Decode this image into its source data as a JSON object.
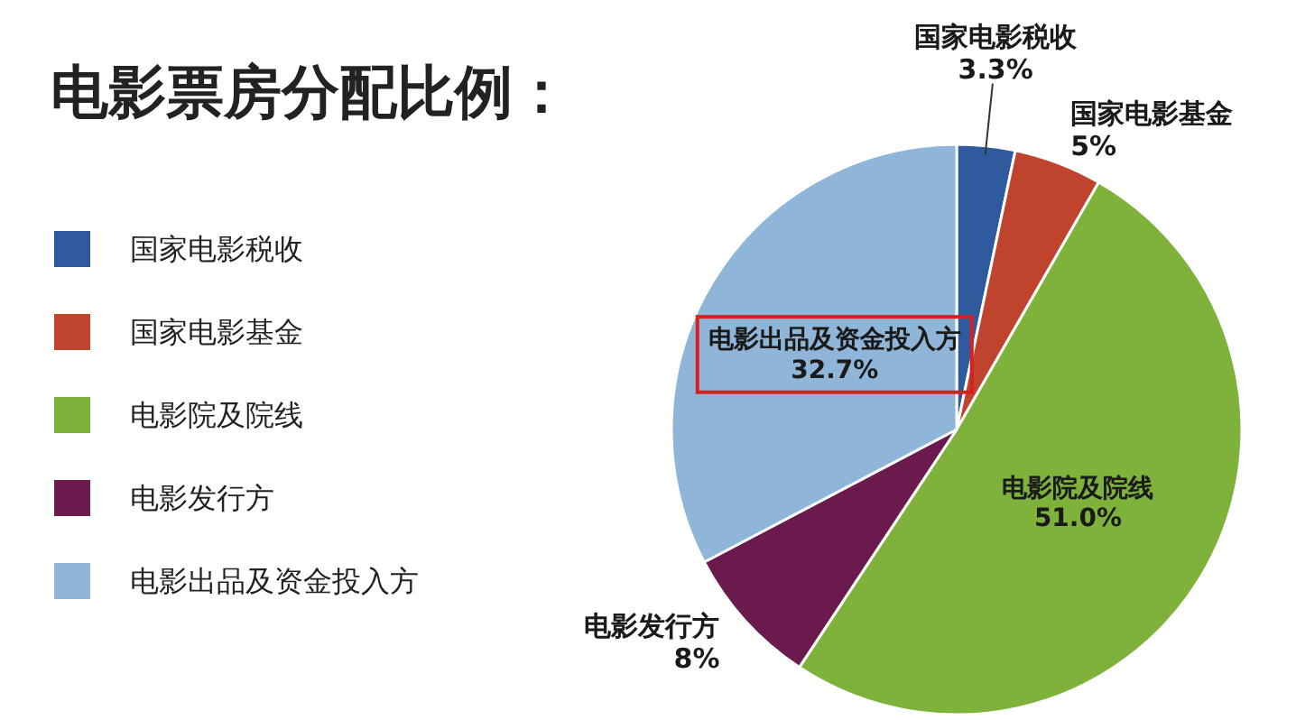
{
  "chart_data": {
    "type": "pie",
    "title": "电影票房分配比例：",
    "categories": [
      "国家电影税收",
      "国家电影基金",
      "电影院及院线",
      "电影发行方",
      "电影出品及资金投入方"
    ],
    "values": [
      3.3,
      5,
      51.0,
      8,
      32.7
    ],
    "value_labels": [
      "3.3%",
      "5%",
      "51.0%",
      "8%",
      "32.7%"
    ],
    "colors": [
      "#2f5a9e",
      "#c0432d",
      "#7fb23b",
      "#6a1a4c",
      "#8fb5d8"
    ],
    "legend": "left"
  }
}
